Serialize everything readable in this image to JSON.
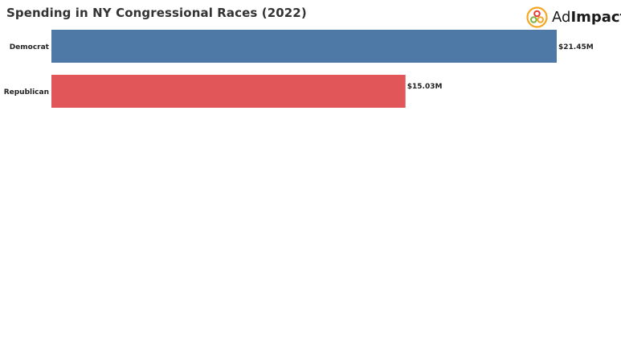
{
  "page": {
    "title": "Spending in NY Congressional Races (2022)"
  },
  "logo": {
    "text_light": "Ad",
    "text_bold": "Impact",
    "colors": [
      "#f5a623",
      "#7cb342",
      "#e53935"
    ]
  },
  "chart_data": {
    "type": "bar",
    "orientation": "horizontal",
    "title": "Spending in NY Congressional Races (2022)",
    "categories": [
      "Democrat",
      "Republican"
    ],
    "values": [
      21.45,
      15.03
    ],
    "value_labels": [
      "$21.45M",
      "$15.03M"
    ],
    "unit": "$M",
    "colors": [
      "#4e79a7",
      "#e15759"
    ],
    "xlim": [
      0,
      21.45
    ],
    "grid": false,
    "legend": "none"
  }
}
